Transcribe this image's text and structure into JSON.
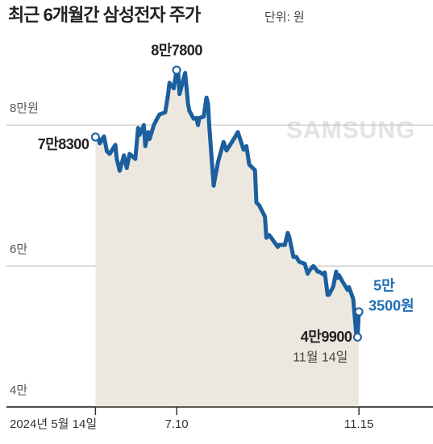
{
  "chart_data": {
    "type": "line",
    "title": "최근 6개월간 삼성전자 주가",
    "unit": "단위: 원",
    "logo": "SAMSUNG",
    "x": [
      "2024-05-14",
      "2024-05-16",
      "2024-05-17",
      "2024-05-20",
      "2024-05-22",
      "2024-05-24",
      "2024-05-28",
      "2024-05-29",
      "2024-05-31",
      "2024-06-03",
      "2024-06-05",
      "2024-06-07",
      "2024-06-11",
      "2024-06-13",
      "2024-06-14",
      "2024-06-17",
      "2024-06-18",
      "2024-06-20",
      "2024-06-21",
      "2024-06-24",
      "2024-06-26",
      "2024-06-28",
      "2024-07-02",
      "2024-07-04",
      "2024-07-05",
      "2024-07-08",
      "2024-07-10",
      "2024-07-11",
      "2024-07-12",
      "2024-07-15",
      "2024-07-16",
      "2024-07-18",
      "2024-07-19",
      "2024-07-22",
      "2024-07-24",
      "2024-07-25",
      "2024-07-26",
      "2024-07-29",
      "2024-07-31",
      "2024-08-01",
      "2024-08-02",
      "2024-08-05",
      "2024-08-06",
      "2024-08-08",
      "2024-08-12",
      "2024-08-14",
      "2024-08-16",
      "2024-08-20",
      "2024-08-22",
      "2024-08-26",
      "2024-08-28",
      "2024-08-30",
      "2024-09-03",
      "2024-09-04",
      "2024-09-06",
      "2024-09-10",
      "2024-09-11",
      "2024-09-13",
      "2024-09-19",
      "2024-09-20",
      "2024-09-24",
      "2024-09-26",
      "2024-09-27",
      "2024-09-30",
      "2024-10-02",
      "2024-10-04",
      "2024-10-08",
      "2024-10-10",
      "2024-10-11",
      "2024-10-14",
      "2024-10-16",
      "2024-10-17",
      "2024-10-18",
      "2024-10-21",
      "2024-10-22",
      "2024-10-24",
      "2024-10-25",
      "2024-10-28",
      "2024-10-30",
      "2024-10-31",
      "2024-11-01",
      "2024-11-04",
      "2024-11-05",
      "2024-11-07",
      "2024-11-08",
      "2024-11-11",
      "2024-11-12",
      "2024-11-13",
      "2024-11-14",
      "2024-11-15"
    ],
    "series": [
      {
        "name": "삼성전자 주가",
        "color": "#1b5f9e",
        "values": [
          78300,
          78200,
          77400,
          78400,
          76300,
          75900,
          77200,
          75200,
          73500,
          75700,
          73900,
          75900,
          75200,
          79600,
          78600,
          80000,
          77000,
          79000,
          78000,
          80000,
          80800,
          81500,
          81800,
          84300,
          86000,
          85200,
          87800,
          87600,
          84400,
          86700,
          87400,
          83000,
          82000,
          80900,
          81000,
          80000,
          81000,
          81200,
          83900,
          83100,
          79600,
          71400,
          72500,
          74700,
          77600,
          76400,
          77000,
          78300,
          79000,
          76500,
          77000,
          74400,
          73600,
          69000,
          68600,
          67000,
          64000,
          64400,
          62700,
          63000,
          63000,
          64700,
          64200,
          61300,
          61300,
          60600,
          60300,
          58900,
          59300,
          60000,
          59500,
          59200,
          59200,
          58800,
          59100,
          55900,
          55900,
          57100,
          59200,
          58300,
          58700,
          57600,
          57300,
          56600,
          57000,
          55300,
          53000,
          50600,
          49900,
          53500
        ]
      }
    ],
    "area_color": "#ece8df",
    "xlim": [
      "2024-03-08",
      "2025-01-06"
    ],
    "xticks": [
      {
        "value": "2024-05-14",
        "label": "2024년 5월 14일"
      },
      {
        "value": "2024-07-10",
        "label": "7.10"
      },
      {
        "value": "2024-11-15",
        "label": "11.15"
      }
    ],
    "ylim": [
      40000,
      95000
    ],
    "yticks": [
      {
        "value": 40000,
        "label": "4만"
      },
      {
        "value": 60000,
        "label": "6만"
      },
      {
        "value": 80000,
        "label": "8만원"
      }
    ],
    "grid": true,
    "annotations": [
      "8만7800",
      "7만8300",
      "4만9900",
      "11월 14일",
      "5만",
      "3500원"
    ]
  }
}
